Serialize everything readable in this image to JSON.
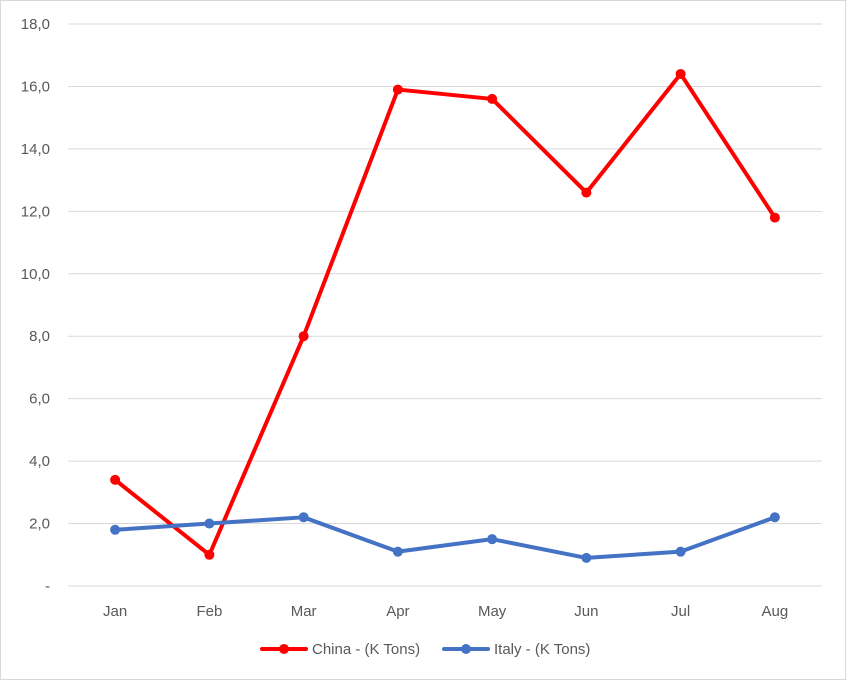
{
  "chart_data": {
    "type": "line",
    "categories": [
      "Jan",
      "Feb",
      "Mar",
      "Apr",
      "May",
      "Jun",
      "Jul",
      "Aug"
    ],
    "series": [
      {
        "name": "China - (K Tons)",
        "color": "#ff0000",
        "values": [
          3.4,
          1.0,
          8.0,
          15.9,
          15.6,
          12.6,
          16.4,
          11.8
        ]
      },
      {
        "name": "Italy - (K Tons)",
        "color": "#4472c4",
        "values": [
          1.8,
          2.0,
          2.2,
          1.1,
          1.5,
          0.9,
          1.1,
          2.2
        ]
      }
    ],
    "title": "",
    "xlabel": "",
    "ylabel": "",
    "ylim": [
      0,
      18
    ],
    "yticks": [
      {
        "value": 0,
        "label": "-"
      },
      {
        "value": 2,
        "label": "2,0"
      },
      {
        "value": 4,
        "label": "4,0"
      },
      {
        "value": 6,
        "label": "6,0"
      },
      {
        "value": 8,
        "label": "8,0"
      },
      {
        "value": 10,
        "label": "10,0"
      },
      {
        "value": 12,
        "label": "12,0"
      },
      {
        "value": 14,
        "label": "14,0"
      },
      {
        "value": 16,
        "label": "16,0"
      },
      {
        "value": 18,
        "label": "18,0"
      }
    ],
    "grid": true,
    "legend": "bottom",
    "gridline_color": "#d9d9d9",
    "label_color": "#595959"
  }
}
